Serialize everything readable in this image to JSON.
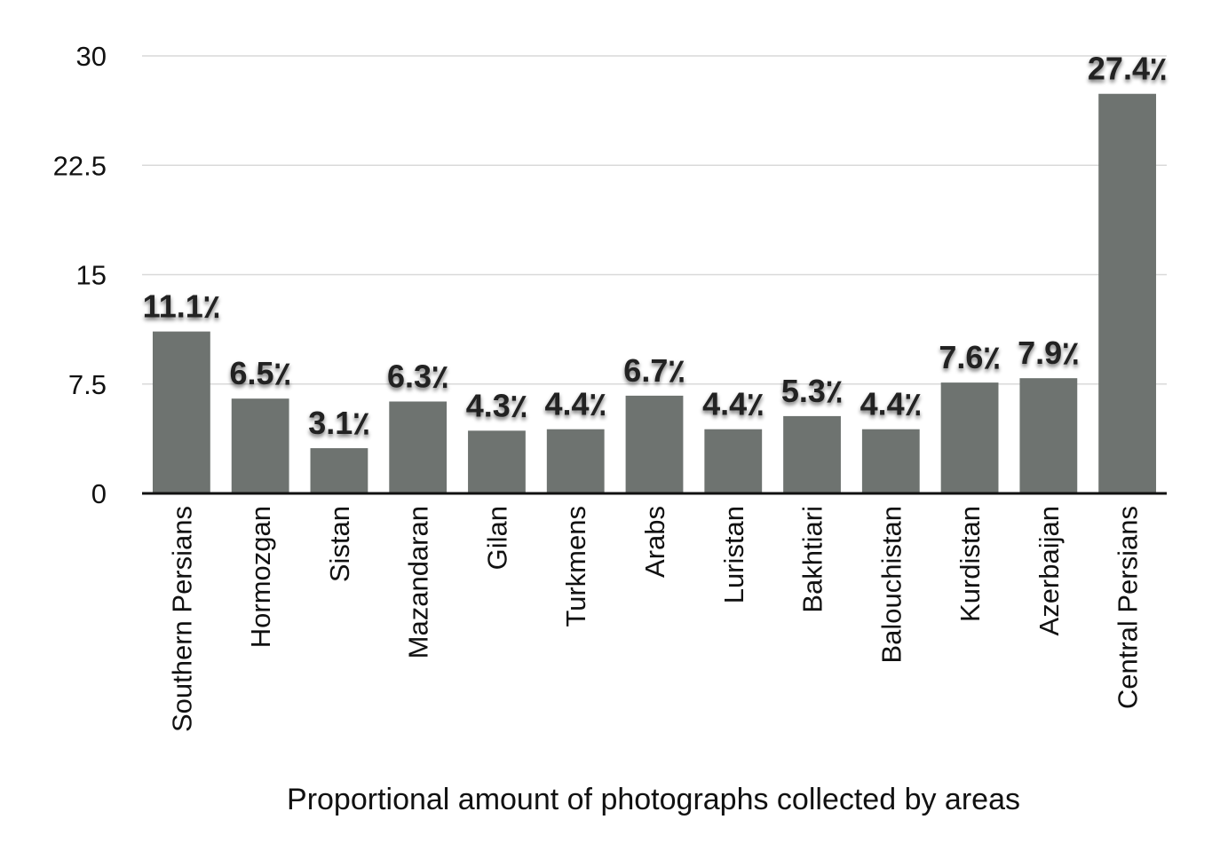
{
  "chart_data": {
    "type": "bar",
    "title": "",
    "xlabel": "Proportional amount of photographs collected by areas",
    "ylabel": "",
    "ylim": [
      0,
      30
    ],
    "yticks": [
      "0",
      "7.5",
      "15",
      "22.5",
      "30"
    ],
    "grid": true,
    "categories": [
      "Southern Persians",
      "Hormozgan",
      "Sistan",
      "Mazandaran",
      "Gilan",
      "Turkmens",
      "Arabs",
      "Luristan",
      "Bakhtiari",
      "Balouchistan",
      "Kurdistan",
      "Azerbaijan",
      "Central Persians"
    ],
    "values": [
      11.1,
      6.5,
      3.1,
      6.3,
      4.3,
      4.4,
      6.7,
      4.4,
      5.3,
      4.4,
      7.6,
      7.9,
      27.4
    ],
    "data_labels": [
      "11.1٪",
      "6.5٪",
      "3.1٪",
      "6.3٪",
      "4.3٪",
      "4.4٪",
      "6.7٪",
      "4.4٪",
      "5.3٪",
      "4.4٪",
      "7.6٪",
      "7.9٪",
      "27.4٪"
    ],
    "bar_color": "#6e7370"
  }
}
